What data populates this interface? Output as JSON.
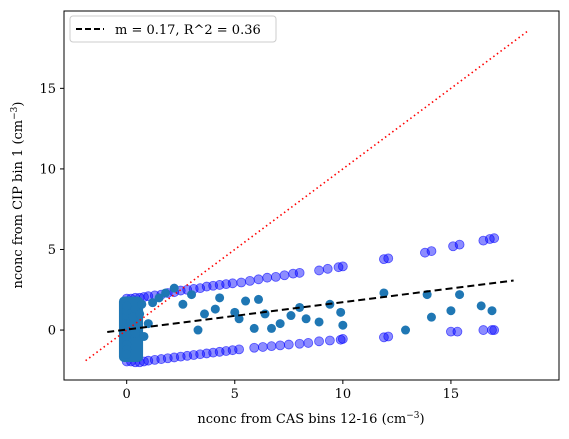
{
  "chart_data": {
    "type": "scatter",
    "xlabel": "nconc from CAS bins 12-16 (cm$^{-3}$)",
    "xlabel_text": "nconc from CAS bins 12-16 (cm",
    "xlabel_sup": "−3",
    "xlabel_close": ")",
    "ylabel_text": "nconc from CIP bin 1 (cm",
    "ylabel_sup": "−3",
    "ylabel_close": ")",
    "xlim": [
      -2.9,
      20.0
    ],
    "ylim": [
      -3.1,
      19.8
    ],
    "xticks": [
      0,
      5,
      10,
      15
    ],
    "yticks": [
      0,
      5,
      10,
      15
    ],
    "xtick_labels": [
      "0",
      "5",
      "10",
      "15"
    ],
    "ytick_labels": [
      "0",
      "5",
      "10",
      "15"
    ],
    "grid": false,
    "legend": {
      "placement": "upper-left",
      "entries": [
        {
          "label": "m = 0.17, R^2 = 0.36",
          "style": "dashed",
          "color": "#000000"
        }
      ]
    },
    "fit_line": {
      "slope": 0.17,
      "intercept": 0.03,
      "x": [
        -0.9,
        17.9
      ]
    },
    "one_to_one_line": {
      "x": [
        -1.9,
        18.6
      ],
      "color": "#ff0000",
      "style": "dotted"
    },
    "series": [
      {
        "color": "#1f77b4",
        "points": [
          [
            0,
            0.0
          ],
          [
            0,
            0.3
          ],
          [
            0,
            0.6
          ],
          [
            0,
            0.9
          ],
          [
            0,
            1.2
          ],
          [
            0,
            -0.3
          ],
          [
            0,
            -0.6
          ],
          [
            0,
            -0.9
          ],
          [
            0,
            -1.2
          ],
          [
            0,
            1.5
          ],
          [
            0,
            -1.5
          ],
          [
            0.1,
            0.2
          ],
          [
            0.2,
            0.5
          ],
          [
            0.3,
            0.8
          ],
          [
            0.4,
            -0.2
          ],
          [
            0.5,
            0.3
          ],
          [
            0.6,
            1.0
          ],
          [
            0.7,
            1.6
          ],
          [
            0.8,
            -0.4
          ],
          [
            1.0,
            0.4
          ],
          [
            1.2,
            1.7
          ],
          [
            1.5,
            2.0
          ],
          [
            1.8,
            2.3
          ],
          [
            2.2,
            2.6
          ],
          [
            2.6,
            1.6
          ],
          [
            3.0,
            2.2
          ],
          [
            3.3,
            0.0
          ],
          [
            3.6,
            1.0
          ],
          [
            4.1,
            1.3
          ],
          [
            4.3,
            2.0
          ],
          [
            5.0,
            1.1
          ],
          [
            5.2,
            0.7
          ],
          [
            5.5,
            1.8
          ],
          [
            5.9,
            0.1
          ],
          [
            6.1,
            1.9
          ],
          [
            6.4,
            1.0
          ],
          [
            6.7,
            0.1
          ],
          [
            7.1,
            0.4
          ],
          [
            7.6,
            0.9
          ],
          [
            8.0,
            1.4
          ],
          [
            8.3,
            0.7
          ],
          [
            8.9,
            0.5
          ],
          [
            9.4,
            1.6
          ],
          [
            9.9,
            1.1
          ],
          [
            10.0,
            0.3
          ],
          [
            11.9,
            2.3
          ],
          [
            12.9,
            0.0
          ],
          [
            13.9,
            2.2
          ],
          [
            14.1,
            0.8
          ],
          [
            15.0,
            1.2
          ],
          [
            15.4,
            2.2
          ],
          [
            16.4,
            1.5
          ],
          [
            16.9,
            1.2
          ]
        ]
      },
      {
        "color": "#0000ff",
        "alpha": 0.45,
        "points": [
          [
            0,
            1.95
          ],
          [
            0.2,
            1.95
          ],
          [
            0.4,
            2.0
          ],
          [
            0.6,
            2.0
          ],
          [
            0.8,
            2.05
          ],
          [
            1.0,
            2.1
          ],
          [
            1.3,
            2.15
          ],
          [
            1.6,
            2.2
          ],
          [
            1.9,
            2.3
          ],
          [
            2.2,
            2.35
          ],
          [
            2.5,
            2.45
          ],
          [
            2.8,
            2.5
          ],
          [
            3.1,
            2.55
          ],
          [
            3.4,
            2.6
          ],
          [
            3.7,
            2.7
          ],
          [
            4.0,
            2.75
          ],
          [
            4.3,
            2.8
          ],
          [
            4.6,
            2.85
          ],
          [
            4.9,
            2.9
          ],
          [
            5.3,
            2.95
          ],
          [
            5.7,
            3.05
          ],
          [
            6.1,
            3.15
          ],
          [
            6.5,
            3.25
          ],
          [
            6.9,
            3.3
          ],
          [
            7.3,
            3.4
          ],
          [
            7.7,
            3.5
          ],
          [
            8.0,
            3.55
          ],
          [
            8.9,
            3.7
          ],
          [
            9.3,
            3.8
          ],
          [
            9.8,
            3.9
          ],
          [
            10.0,
            3.95
          ],
          [
            11.9,
            4.4
          ],
          [
            12.1,
            4.45
          ],
          [
            13.8,
            4.8
          ],
          [
            14.1,
            4.9
          ],
          [
            15.1,
            5.2
          ],
          [
            15.4,
            5.3
          ],
          [
            16.5,
            5.55
          ],
          [
            16.8,
            5.65
          ],
          [
            17.0,
            5.7
          ],
          [
            0,
            -1.95
          ],
          [
            0.2,
            -1.95
          ],
          [
            0.4,
            -2.0
          ],
          [
            0.6,
            -2.0
          ],
          [
            0.8,
            -1.95
          ],
          [
            1.0,
            -1.9
          ],
          [
            1.3,
            -1.85
          ],
          [
            1.6,
            -1.8
          ],
          [
            1.9,
            -1.75
          ],
          [
            2.2,
            -1.7
          ],
          [
            2.5,
            -1.65
          ],
          [
            2.8,
            -1.6
          ],
          [
            3.1,
            -1.55
          ],
          [
            3.4,
            -1.5
          ],
          [
            3.7,
            -1.45
          ],
          [
            4.0,
            -1.4
          ],
          [
            4.3,
            -1.35
          ],
          [
            4.6,
            -1.3
          ],
          [
            4.9,
            -1.25
          ],
          [
            5.2,
            -1.2
          ],
          [
            5.9,
            -1.1
          ],
          [
            6.3,
            -1.05
          ],
          [
            6.7,
            -1.0
          ],
          [
            7.1,
            -0.95
          ],
          [
            7.5,
            -0.9
          ],
          [
            8.0,
            -0.85
          ],
          [
            8.4,
            -0.8
          ],
          [
            8.9,
            -0.7
          ],
          [
            9.4,
            -0.65
          ],
          [
            9.9,
            -0.6
          ],
          [
            10.0,
            -0.55
          ],
          [
            11.9,
            -0.45
          ],
          [
            12.1,
            -0.4
          ],
          [
            15.0,
            -0.1
          ],
          [
            15.3,
            -0.1
          ],
          [
            16.5,
            0.0
          ],
          [
            16.9,
            0.0
          ],
          [
            17.0,
            0.0
          ]
        ]
      }
    ]
  }
}
